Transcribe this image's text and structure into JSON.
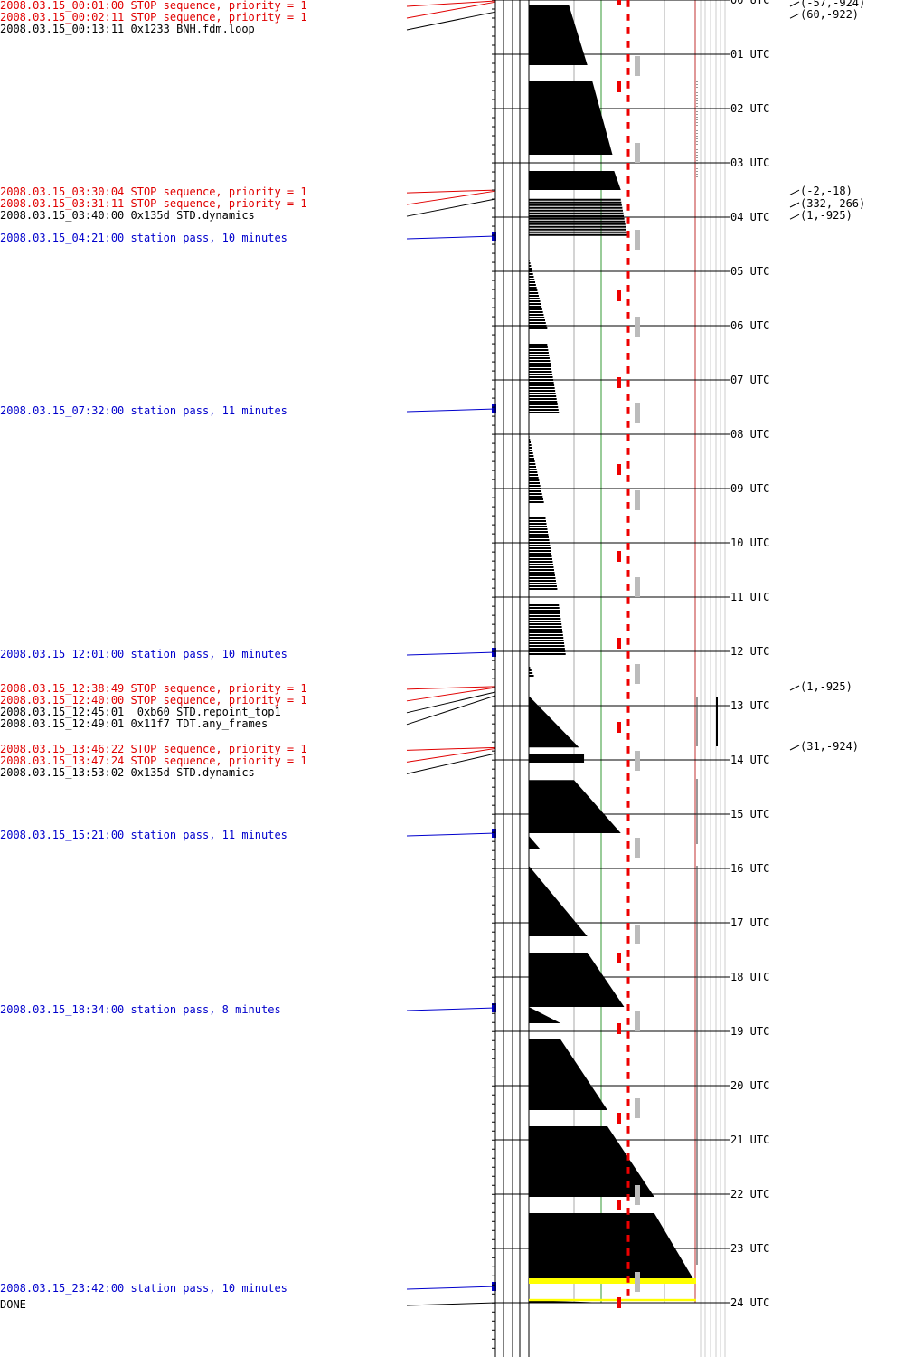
{
  "colors": {
    "stop": "#e00000",
    "command": "#000000",
    "pass": "#0000cc",
    "yellow": "#ffff00",
    "green": "#339933",
    "grey": "#bbbbbb",
    "red_dash": "#ee0000",
    "redline": "#c03030"
  },
  "events": [
    {
      "time": "2008.03.15_00:01:00",
      "text": "STOP sequence, priority = 1",
      "kind": "stop",
      "hour": 0.0167
    },
    {
      "time": "2008.03.15_00:02:11",
      "text": "STOP sequence, priority = 1",
      "kind": "stop",
      "hour": 0.0364
    },
    {
      "time": "2008.03.15_00:13:11",
      "text": "0x1233 BNH.fdm.loop",
      "kind": "command",
      "hour": 0.2197
    },
    {
      "time": "2008.03.15_03:30:04",
      "text": "STOP sequence, priority = 1",
      "kind": "stop",
      "hour": 3.5011
    },
    {
      "time": "2008.03.15_03:31:11",
      "text": "STOP sequence, priority = 1",
      "kind": "stop",
      "hour": 3.5197
    },
    {
      "time": "2008.03.15_03:40:00",
      "text": "0x135d STD.dynamics",
      "kind": "command",
      "hour": 3.6667
    },
    {
      "time": "2008.03.15_04:21:00",
      "text": "station pass, 10 minutes",
      "kind": "pass",
      "hour": 4.35,
      "duration_min": 10
    },
    {
      "time": "2008.03.15_07:32:00",
      "text": "station pass, 11 minutes",
      "kind": "pass",
      "hour": 7.5333,
      "duration_min": 11
    },
    {
      "time": "2008.03.15_12:01:00",
      "text": "station pass, 10 minutes",
      "kind": "pass",
      "hour": 12.0167,
      "duration_min": 10
    },
    {
      "time": "2008.03.15_12:38:49",
      "text": "STOP sequence, priority = 1",
      "kind": "stop",
      "hour": 12.6469
    },
    {
      "time": "2008.03.15_12:40:00",
      "text": "STOP sequence, priority = 1",
      "kind": "stop",
      "hour": 12.6667
    },
    {
      "time": "2008.03.15_12:45:01",
      "text": " 0xb60 STD.repoint_top1",
      "kind": "command",
      "hour": 12.7503
    },
    {
      "time": "2008.03.15_12:49:01",
      "text": "0x11f7 TDT.any_frames",
      "kind": "command",
      "hour": 12.8169
    },
    {
      "time": "2008.03.15_13:46:22",
      "text": "STOP sequence, priority = 1",
      "kind": "stop",
      "hour": 13.7728
    },
    {
      "time": "2008.03.15_13:47:24",
      "text": "STOP sequence, priority = 1",
      "kind": "stop",
      "hour": 13.79
    },
    {
      "time": "2008.03.15_13:53:02",
      "text": "0x135d STD.dynamics",
      "kind": "command",
      "hour": 13.8839
    },
    {
      "time": "2008.03.15_15:21:00",
      "text": "station pass, 11 minutes",
      "kind": "pass",
      "hour": 15.35,
      "duration_min": 11
    },
    {
      "time": "2008.03.15_18:34:00",
      "text": "station pass, 8 minutes",
      "kind": "pass",
      "hour": 18.5667,
      "duration_min": 8
    },
    {
      "time": "2008.03.15_23:42:00",
      "text": "station pass, 10 minutes",
      "kind": "pass",
      "hour": 23.7,
      "duration_min": 10
    },
    {
      "time": "DONE",
      "text": "",
      "kind": "command",
      "hour": 24.0
    }
  ],
  "hour_labels": [
    "00 UTC",
    "01 UTC",
    "02 UTC",
    "03 UTC",
    "04 UTC",
    "05 UTC",
    "06 UTC",
    "07 UTC",
    "08 UTC",
    "09 UTC",
    "10 UTC",
    "11 UTC",
    "12 UTC",
    "13 UTC",
    "14 UTC",
    "15 UTC",
    "16 UTC",
    "17 UTC",
    "18 UTC",
    "19 UTC",
    "20 UTC",
    "21 UTC",
    "22 UTC",
    "23 UTC",
    "24 UTC"
  ],
  "pointing": [
    {
      "text": "(-57,-924)",
      "hour": 0.05
    },
    {
      "text": "(60,-922)",
      "hour": 0.27
    },
    {
      "text": "(-2,-18)",
      "hour": 3.52
    },
    {
      "text": "(332,-266)",
      "hour": 3.75
    },
    {
      "text": "(1,-925)",
      "hour": 3.97
    },
    {
      "text": "(1,-925)",
      "hour": 12.65
    },
    {
      "text": "(31,-924)",
      "hour": 13.75
    }
  ],
  "buffer_fill": [
    {
      "start": 0.1,
      "end": 1.2,
      "level_start": 0.24,
      "level_end": 0.35,
      "style": "solid"
    },
    {
      "start": 1.5,
      "end": 2.85,
      "level_start": 0.38,
      "level_end": 0.5,
      "style": "solid"
    },
    {
      "start": 3.15,
      "end": 3.5,
      "level_start": 0.51,
      "level_end": 0.55,
      "style": "solid"
    },
    {
      "start": 3.68,
      "end": 4.35,
      "level_start": 0.55,
      "level_end": 0.59,
      "style": "hatched"
    },
    {
      "start": 4.75,
      "end": 6.05,
      "level_start": 0.0,
      "level_end": 0.11,
      "style": "hatched"
    },
    {
      "start": 6.35,
      "end": 7.6,
      "level_start": 0.11,
      "level_end": 0.18,
      "style": "hatched"
    },
    {
      "start": 8.0,
      "end": 9.25,
      "level_start": 0.0,
      "level_end": 0.09,
      "style": "hatched"
    },
    {
      "start": 9.55,
      "end": 10.85,
      "level_start": 0.1,
      "level_end": 0.17,
      "style": "hatched"
    },
    {
      "start": 11.15,
      "end": 12.05,
      "level_start": 0.18,
      "level_end": 0.22,
      "style": "hatched"
    },
    {
      "start": 12.25,
      "end": 12.45,
      "level_start": 0.0,
      "level_end": 0.03,
      "style": "hatched"
    },
    {
      "start": 12.82,
      "end": 13.77,
      "level_start": 0.0,
      "level_end": 0.3,
      "style": "triangle"
    },
    {
      "start": 13.9,
      "end": 14.05,
      "level_start": 0.33,
      "level_end": 0.33,
      "style": "solid"
    },
    {
      "start": 14.37,
      "end": 15.35,
      "level_start": 0.27,
      "level_end": 0.55,
      "style": "solid"
    },
    {
      "start": 15.4,
      "end": 15.65,
      "level_start": 0.0,
      "level_end": 0.07,
      "style": "triangle"
    },
    {
      "start": 15.95,
      "end": 17.25,
      "level_start": 0.0,
      "level_end": 0.35,
      "style": "triangle"
    },
    {
      "start": 17.55,
      "end": 18.55,
      "level_start": 0.35,
      "level_end": 0.57,
      "style": "solid"
    },
    {
      "start": 18.55,
      "end": 18.85,
      "level_start": 0.0,
      "level_end": 0.19,
      "style": "triangle"
    },
    {
      "start": 19.15,
      "end": 20.45,
      "level_start": 0.19,
      "level_end": 0.47,
      "style": "solid"
    },
    {
      "start": 20.75,
      "end": 22.05,
      "level_start": 0.47,
      "level_end": 0.75,
      "style": "solid"
    },
    {
      "start": 22.35,
      "end": 23.65,
      "level_start": 0.75,
      "level_end": 1.0,
      "style": "solid"
    },
    {
      "start": 23.95,
      "end": 24.0,
      "level_start": 0.0,
      "level_end": 0.45,
      "style": "solid"
    }
  ],
  "yellow_bars": [
    {
      "start": 23.55,
      "end": 23.65,
      "level": 1.0
    },
    {
      "start": 23.93,
      "end": 23.97,
      "level": 1.0
    }
  ],
  "red_marks": [
    0.0,
    1.6,
    5.45,
    7.05,
    8.65,
    10.25,
    11.85,
    13.4,
    17.65,
    18.95,
    20.6,
    22.2,
    24.0
  ],
  "grey_marks": [
    1.2,
    2.8,
    4.4,
    6.0,
    7.6,
    9.2,
    10.8,
    12.4,
    14.0,
    15.6,
    17.2,
    18.8,
    20.4,
    22.0,
    23.6
  ],
  "red_dash_col": {
    "period": 0.25,
    "len": 0.13
  },
  "right_ticks": [
    {
      "start": 1.5,
      "end": 3.3,
      "style": "dotted"
    },
    {
      "start": 12.85,
      "end": 13.75,
      "style": "solid"
    },
    {
      "start": 14.35,
      "end": 15.55,
      "style": "solid"
    },
    {
      "start": 15.95,
      "end": 23.3,
      "style": "solid"
    }
  ]
}
